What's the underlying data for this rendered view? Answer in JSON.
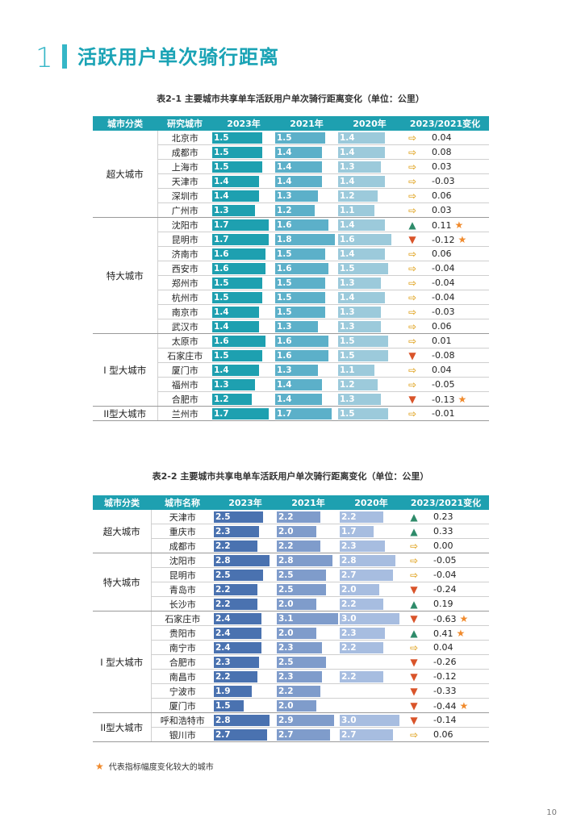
{
  "section": {
    "number": "1",
    "title": "活跃用户单次骑行距离"
  },
  "legend": {
    "text": "代表指标幅度变化较大的城市"
  },
  "page_number": "10",
  "table1": {
    "caption": "表2-1 主要城市共享单车活跃用户单次骑行距离变化（单位：公里）",
    "header_color": "#1ea0b0",
    "colors": [
      "#1ea0b0",
      "#5cb0c9",
      "#9ccadb"
    ],
    "columns": [
      "城市分类",
      "研究城市",
      "2023年",
      "2021年",
      "2020年",
      "2023/2021变化"
    ],
    "groups": [
      {
        "category": "超大城市",
        "rows": [
          {
            "city": "北京市",
            "v2023": "1.5",
            "v2021": "1.5",
            "v2020": "1.4",
            "trend": "flat",
            "change": "0.04",
            "star": false
          },
          {
            "city": "成都市",
            "v2023": "1.5",
            "v2021": "1.4",
            "v2020": "1.4",
            "trend": "flat",
            "change": "0.08",
            "star": false
          },
          {
            "city": "上海市",
            "v2023": "1.5",
            "v2021": "1.4",
            "v2020": "1.3",
            "trend": "flat",
            "change": "0.03",
            "star": false
          },
          {
            "city": "天津市",
            "v2023": "1.4",
            "v2021": "1.4",
            "v2020": "1.4",
            "trend": "flat",
            "change": "-0.03",
            "star": false
          },
          {
            "city": "深圳市",
            "v2023": "1.4",
            "v2021": "1.3",
            "v2020": "1.2",
            "trend": "flat",
            "change": "0.06",
            "star": false
          },
          {
            "city": "广州市",
            "v2023": "1.3",
            "v2021": "1.2",
            "v2020": "1.1",
            "trend": "flat",
            "change": "0.03",
            "star": false
          }
        ]
      },
      {
        "category": "特大城市",
        "rows": [
          {
            "city": "沈阳市",
            "v2023": "1.7",
            "v2021": "1.6",
            "v2020": "1.4",
            "trend": "up",
            "change": "0.11",
            "star": true
          },
          {
            "city": "昆明市",
            "v2023": "1.7",
            "v2021": "1.8",
            "v2020": "1.6",
            "trend": "down",
            "change": "-0.12",
            "star": true
          },
          {
            "city": "济南市",
            "v2023": "1.6",
            "v2021": "1.5",
            "v2020": "1.4",
            "trend": "flat",
            "change": "0.06",
            "star": false
          },
          {
            "city": "西安市",
            "v2023": "1.6",
            "v2021": "1.6",
            "v2020": "1.5",
            "trend": "flat",
            "change": "-0.04",
            "star": false
          },
          {
            "city": "郑州市",
            "v2023": "1.5",
            "v2021": "1.5",
            "v2020": "1.3",
            "trend": "flat",
            "change": "-0.04",
            "star": false
          },
          {
            "city": "杭州市",
            "v2023": "1.5",
            "v2021": "1.5",
            "v2020": "1.4",
            "trend": "flat",
            "change": "-0.04",
            "star": false
          },
          {
            "city": "南京市",
            "v2023": "1.4",
            "v2021": "1.5",
            "v2020": "1.3",
            "trend": "flat",
            "change": "-0.03",
            "star": false
          },
          {
            "city": "武汉市",
            "v2023": "1.4",
            "v2021": "1.3",
            "v2020": "1.3",
            "trend": "flat",
            "change": "0.06",
            "star": false
          }
        ]
      },
      {
        "category": "I 型大城市",
        "rows": [
          {
            "city": "太原市",
            "v2023": "1.6",
            "v2021": "1.6",
            "v2020": "1.5",
            "trend": "flat",
            "change": "0.01",
            "star": false
          },
          {
            "city": "石家庄市",
            "v2023": "1.5",
            "v2021": "1.6",
            "v2020": "1.5",
            "trend": "down",
            "change": "-0.08",
            "star": false
          },
          {
            "city": "厦门市",
            "v2023": "1.4",
            "v2021": "1.3",
            "v2020": "1.1",
            "trend": "flat",
            "change": "0.04",
            "star": false
          },
          {
            "city": "福州市",
            "v2023": "1.3",
            "v2021": "1.4",
            "v2020": "1.2",
            "trend": "flat",
            "change": "-0.05",
            "star": false
          },
          {
            "city": "合肥市",
            "v2023": "1.2",
            "v2021": "1.4",
            "v2020": "1.3",
            "trend": "down",
            "change": "-0.13",
            "star": true
          }
        ]
      },
      {
        "category": "II型大城市",
        "rows": [
          {
            "city": "兰州市",
            "v2023": "1.7",
            "v2021": "1.7",
            "v2020": "1.5",
            "trend": "flat",
            "change": "-0.01",
            "star": false
          }
        ]
      }
    ]
  },
  "table2": {
    "caption": "表2-2 主要城市共享电单车活跃用户单次骑行距离变化（单位：公里）",
    "header_color": "#1ea0b0",
    "colors": [
      "#4a72b0",
      "#7f9ccb",
      "#a7bde0"
    ],
    "columns": [
      "城市分类",
      "城市名称",
      "2023年",
      "2021年",
      "2020年",
      "2023/2021变化"
    ],
    "groups": [
      {
        "category": "超大城市",
        "rows": [
          {
            "city": "天津市",
            "v2023": "2.5",
            "v2021": "2.2",
            "v2020": "2.2",
            "trend": "up",
            "change": "0.23",
            "star": false
          },
          {
            "city": "重庆市",
            "v2023": "2.3",
            "v2021": "2.0",
            "v2020": "1.7",
            "trend": "up",
            "change": "0.33",
            "star": false
          },
          {
            "city": "成都市",
            "v2023": "2.2",
            "v2021": "2.2",
            "v2020": "2.3",
            "trend": "flat",
            "change": "0.00",
            "star": false
          }
        ]
      },
      {
        "category": "特大城市",
        "rows": [
          {
            "city": "沈阳市",
            "v2023": "2.8",
            "v2021": "2.8",
            "v2020": "2.8",
            "trend": "flat",
            "change": "-0.05",
            "star": false
          },
          {
            "city": "昆明市",
            "v2023": "2.5",
            "v2021": "2.5",
            "v2020": "2.7",
            "trend": "flat",
            "change": "-0.04",
            "star": false
          },
          {
            "city": "青岛市",
            "v2023": "2.2",
            "v2021": "2.5",
            "v2020": "2.0",
            "trend": "down",
            "change": "-0.24",
            "star": false
          },
          {
            "city": "长沙市",
            "v2023": "2.2",
            "v2021": "2.0",
            "v2020": "2.2",
            "trend": "up",
            "change": "0.19",
            "star": false
          }
        ]
      },
      {
        "category": "I 型大城市",
        "rows": [
          {
            "city": "石家庄市",
            "v2023": "2.4",
            "v2021": "3.1",
            "v2020": "3.0",
            "trend": "down",
            "change": "-0.63",
            "star": true
          },
          {
            "city": "贵阳市",
            "v2023": "2.4",
            "v2021": "2.0",
            "v2020": "2.3",
            "trend": "up",
            "change": "0.41",
            "star": true
          },
          {
            "city": "南宁市",
            "v2023": "2.4",
            "v2021": "2.3",
            "v2020": "2.2",
            "trend": "flat",
            "change": "0.04",
            "star": false
          },
          {
            "city": "合肥市",
            "v2023": "2.3",
            "v2021": "2.5",
            "v2020": "",
            "trend": "down",
            "change": "-0.26",
            "star": false
          },
          {
            "city": "南昌市",
            "v2023": "2.2",
            "v2021": "2.3",
            "v2020": "2.2",
            "trend": "down",
            "change": "-0.12",
            "star": false
          },
          {
            "city": "宁波市",
            "v2023": "1.9",
            "v2021": "2.2",
            "v2020": "",
            "trend": "down",
            "change": "-0.33",
            "star": false
          },
          {
            "city": "厦门市",
            "v2023": "1.5",
            "v2021": "2.0",
            "v2020": "",
            "trend": "down",
            "change": "-0.44",
            "star": true
          }
        ]
      },
      {
        "category": "II型大城市",
        "rows": [
          {
            "city": "呼和浩特市",
            "v2023": "2.8",
            "v2021": "2.9",
            "v2020": "3.0",
            "trend": "down",
            "change": "-0.14",
            "star": false
          },
          {
            "city": "银川市",
            "v2023": "2.7",
            "v2021": "2.7",
            "v2020": "2.7",
            "trend": "flat",
            "change": "0.06",
            "star": false
          }
        ]
      }
    ]
  }
}
